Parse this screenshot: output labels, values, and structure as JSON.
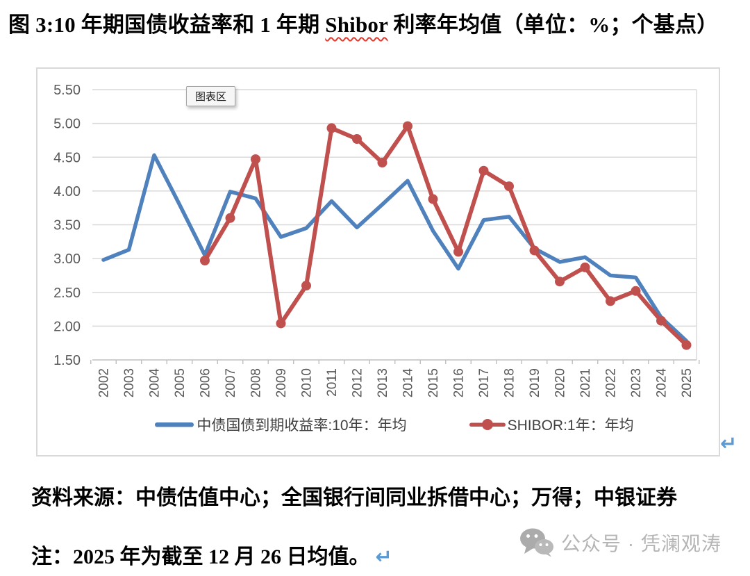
{
  "title": {
    "prefix": "图 3:10 年期国债收益率和 1 年期 ",
    "spellcheck_word": "Shibor",
    "suffix": " 利率年均值（单位：%；个基点）"
  },
  "chart": {
    "tooltip_label": "图表区"
  },
  "chart_data": {
    "type": "line",
    "categories": [
      "2002",
      "2003",
      "2004",
      "2005",
      "2006",
      "2007",
      "2008",
      "2009",
      "2010",
      "2011",
      "2012",
      "2013",
      "2014",
      "2015",
      "2016",
      "2017",
      "2018",
      "2019",
      "2020",
      "2021",
      "2022",
      "2023",
      "2024",
      "2025"
    ],
    "series": [
      {
        "name": "中债国债到期收益率:10年：年均",
        "color": "#4F81BD",
        "marker": "none",
        "values": [
          2.98,
          3.13,
          4.53,
          3.8,
          3.05,
          3.99,
          3.89,
          3.32,
          3.45,
          3.85,
          3.46,
          3.8,
          4.15,
          3.41,
          2.85,
          3.57,
          3.62,
          3.15,
          2.95,
          3.02,
          2.75,
          2.72,
          2.13,
          1.78
        ]
      },
      {
        "name": "SHIBOR:1年：年均",
        "color": "#C0504D",
        "marker": "circle",
        "values": [
          null,
          null,
          null,
          null,
          2.97,
          3.6,
          4.47,
          2.04,
          2.6,
          4.93,
          4.77,
          4.42,
          4.96,
          3.88,
          3.1,
          4.3,
          4.07,
          3.12,
          2.66,
          2.87,
          2.37,
          2.52,
          2.08,
          1.72
        ]
      }
    ],
    "ylim": [
      1.5,
      5.5
    ],
    "ytick_step": 0.5,
    "yticks": [
      "5.50",
      "5.00",
      "4.50",
      "4.00",
      "3.50",
      "3.00",
      "2.50",
      "2.00",
      "1.50"
    ],
    "grid": "horizontal",
    "legend_position": "bottom",
    "title": "",
    "xlabel": "",
    "ylabel": ""
  },
  "footer": {
    "source": "资料来源：中债估值中心；全国银行间同业拆借中心；万得；中银证券",
    "note": "注：2025 年为截至 12 月 26 日均值。"
  },
  "watermark": {
    "text": "公众号 · 凭澜观涛"
  },
  "marks": {
    "return_mark": "↵"
  },
  "colors": {
    "bond_blue": "#4F81BD",
    "shibor_red": "#C0504D",
    "grid_gray": "#D9D9D9",
    "axis_line_gray": "#BFBFBF",
    "axis_text_gray": "#595959",
    "legend_text": "#404040",
    "return_blue": "#5B9BD5",
    "watermark_gray": "#B5B5B5",
    "wavy_red": "#E03A2F"
  }
}
